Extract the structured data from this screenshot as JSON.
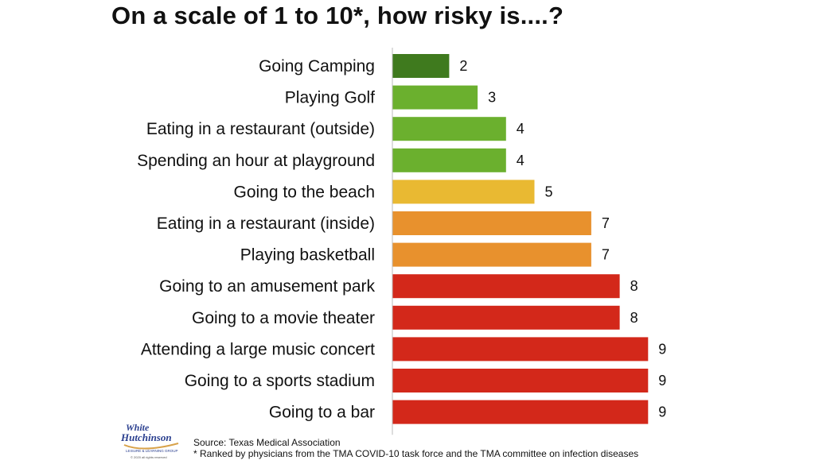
{
  "title": "On a scale of 1 to 10*, how risky is....?",
  "chart_data": {
    "type": "bar",
    "orientation": "horizontal",
    "title": "On a scale of 1 to 10*, how risky is....?",
    "categories": [
      "Going Camping",
      "Playing Golf",
      "Eating in a restaurant (outside)",
      "Spending an hour at playground",
      "Going to the beach",
      "Eating in a restaurant (inside)",
      "Playing basketball",
      "Going to an amusement park",
      "Going to a movie theater",
      "Attending a large music concert",
      "Going to a sports stadium",
      "Going to a bar"
    ],
    "values": [
      2,
      3,
      4,
      4,
      5,
      7,
      7,
      8,
      8,
      9,
      9,
      9
    ],
    "colors": [
      "#3f7a1e",
      "#6bb02e",
      "#6bb02e",
      "#6bb02e",
      "#e9b932",
      "#e8912d",
      "#e8912d",
      "#d3281a",
      "#d3281a",
      "#d3281a",
      "#d3281a",
      "#d3281a"
    ],
    "xlim": [
      0,
      9
    ],
    "data_labels": true,
    "grid": false,
    "legend": "none"
  },
  "logo": {
    "line1": "White",
    "line2": "Hutchinson",
    "line3": "LEISURE & LEARNING GROUP",
    "line4": "© 2020 all rights reserved"
  },
  "source": {
    "line1": "Source: Texas Medical Association",
    "line2": "* Ranked by physicians from the TMA COVID-10 task force and the TMA committee on infection diseases"
  }
}
